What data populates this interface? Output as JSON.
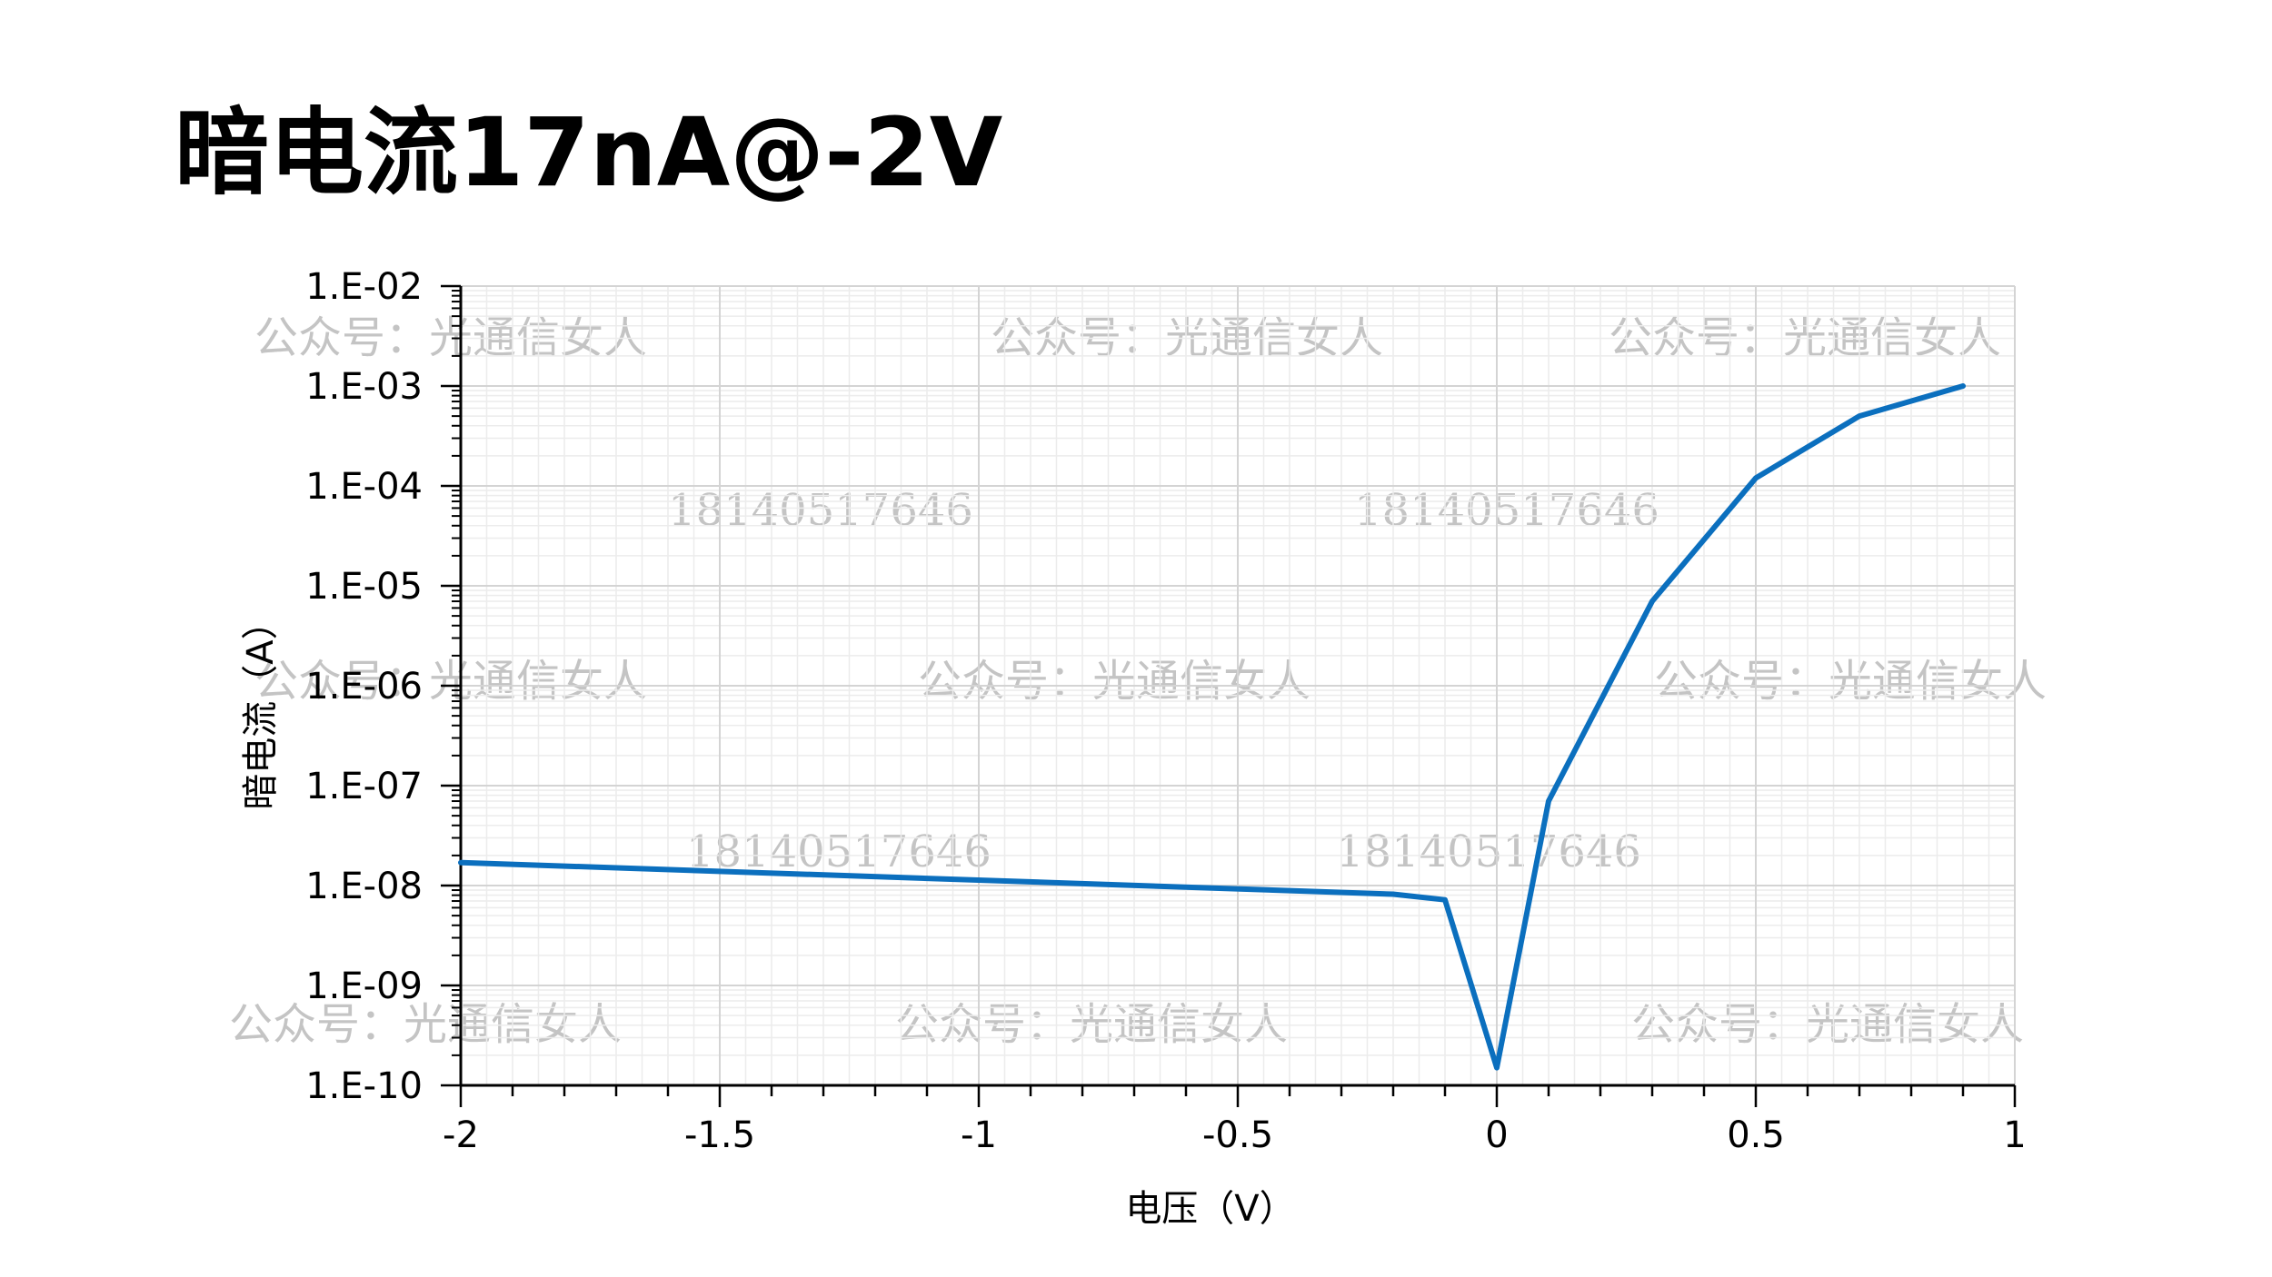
{
  "chart_data": {
    "type": "line",
    "title": "暗电流17nA@-2V",
    "xlabel": "电压（V）",
    "ylabel": "暗电流（A）",
    "xlim": [
      -2,
      1
    ],
    "ylim": [
      1e-10,
      0.01
    ],
    "yscale": "log",
    "grid": true,
    "legend": "none",
    "x_ticks": [
      -2,
      -1.5,
      -1,
      -0.5,
      0,
      0.5,
      1
    ],
    "x_tick_labels": [
      "-2",
      "-1.5",
      "-1",
      "-0.5",
      "0",
      "0.5",
      "1"
    ],
    "y_tick_labels": [
      "1.E-10",
      "1.E-09",
      "1.E-08",
      "1.E-07",
      "1.E-06",
      "1.E-05",
      "1.E-04",
      "1.E-03",
      "1.E-02"
    ],
    "series": [
      {
        "color": "#0b6fbe",
        "x": [
          -2,
          -0.2,
          -0.1,
          0,
          0.1,
          0.3,
          0.5,
          0.7,
          0.9
        ],
        "y": [
          1.7e-08,
          8.2e-09,
          7.2e-09,
          1.5e-10,
          7e-08,
          7e-06,
          0.00012,
          0.0005,
          0.001
        ]
      }
    ],
    "watermarks": [
      "公众号：光通信女人",
      "公众号：光通信女人",
      "公众号：光通信女人",
      "18140517646",
      "18140517646",
      "公众号：光通信女人",
      "公众号：光通信女人",
      "公众号：光通信女人",
      "18140517646",
      "18140517646",
      "公众号：光通信女人",
      "公众号：光通信女人",
      "公众号：光通信女人"
    ]
  }
}
